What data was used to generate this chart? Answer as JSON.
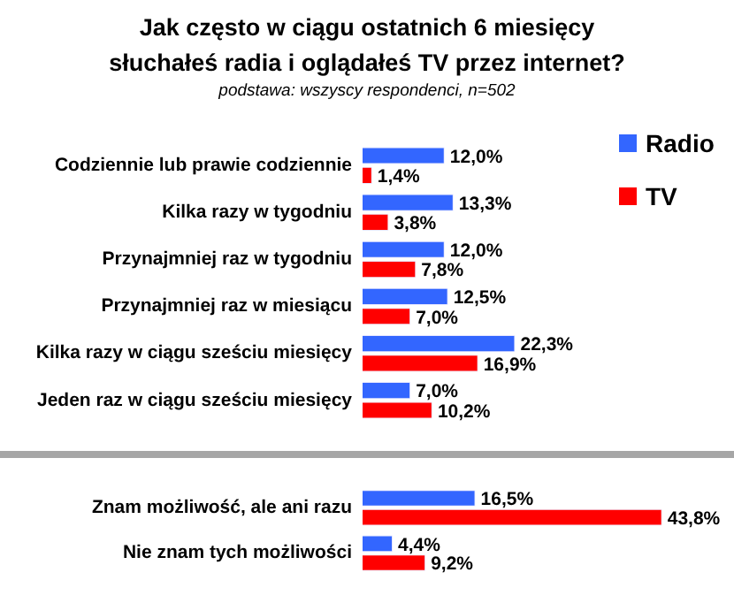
{
  "chart_data": [
    {
      "type": "bar",
      "orientation": "horizontal",
      "title": "Jak często w ciągu ostatnich 6 miesięcy\nsłuchałeś radia i oglądałeś TV przez internet?",
      "subtitle": "podstawa: wszyscy respondenci, n=502",
      "categories": [
        "Codziennie lub prawie codziennie",
        "Kilka razy w tygodniu",
        "Przynajmniej raz w tygodniu",
        "Przynajmniej raz w miesiącu",
        "Kilka razy w ciągu sześciu miesięcy",
        "Jeden raz w ciągu sześciu miesięcy"
      ],
      "series": [
        {
          "name": "Radio",
          "color": "#3366ff",
          "values": [
            12.0,
            13.3,
            12.0,
            12.5,
            22.3,
            7.0
          ],
          "value_labels": [
            "12,0%",
            "13,3%",
            "12,0%",
            "12,5%",
            "22,3%",
            "7,0%"
          ]
        },
        {
          "name": "TV",
          "color": "#ff0000",
          "values": [
            1.4,
            3.8,
            7.8,
            7.0,
            16.9,
            10.2
          ],
          "value_labels": [
            "1,4%",
            "3,8%",
            "7,8%",
            "7,0%",
            "16,9%",
            "10,2%"
          ]
        }
      ],
      "legend": "right",
      "tick_labels": "y"
    },
    {
      "type": "bar",
      "orientation": "horizontal",
      "categories": [
        "Znam możliwość, ale ani razu",
        "Nie znam tych możliwości"
      ],
      "series": [
        {
          "color": "#3366ff",
          "values": [
            16.5,
            4.4
          ],
          "value_labels": [
            "16,5%",
            "4,4%"
          ]
        },
        {
          "color": "#ff0000",
          "values": [
            43.8,
            9.2
          ],
          "value_labels": [
            "43,8%",
            "9,2%"
          ]
        }
      ],
      "legend": false,
      "tick_labels": "y"
    }
  ]
}
